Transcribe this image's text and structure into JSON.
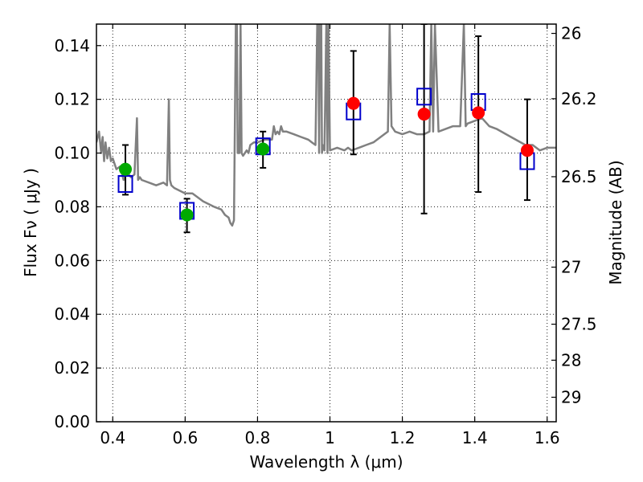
{
  "chart_data": {
    "type": "scatter",
    "xlabel": "Wavelength  λ (μm)",
    "ylabel": "Flux  Fν  ( μJy )",
    "ylabel_right": "Magnitude (AB)",
    "xlim": [
      0.355,
      1.625
    ],
    "ylim": [
      0,
      0.148
    ],
    "grid": true,
    "x_ticks": [
      0.4,
      0.6,
      0.8,
      1.0,
      1.2,
      1.4,
      1.6
    ],
    "x_tick_labels": [
      "0.4",
      "0.6",
      "0.8",
      "1",
      "1.2",
      "1.4",
      "1.6"
    ],
    "y_ticks": [
      0.0,
      0.02,
      0.04,
      0.06,
      0.08,
      0.1,
      0.12,
      0.14
    ],
    "y_tick_labels": [
      "0.00",
      "0.02",
      "0.04",
      "0.06",
      "0.08",
      "0.10",
      "0.12",
      "0.14"
    ],
    "right_ticks": [
      {
        "label": "26",
        "mag": 26.0
      },
      {
        "label": "26.2",
        "mag": 26.2
      },
      {
        "label": "26.5",
        "mag": 26.5
      },
      {
        "label": "27",
        "mag": 27.0
      },
      {
        "label": "27.5",
        "mag": 27.5
      },
      {
        "label": "28",
        "mag": 28.0
      },
      {
        "label": "29",
        "mag": 29.0
      }
    ],
    "series": [
      {
        "kind": "line",
        "color": "#808080",
        "x": [
          0.355,
          0.362,
          0.368,
          0.372,
          0.376,
          0.38,
          0.385,
          0.39,
          0.395,
          0.4,
          0.41,
          0.42,
          0.43,
          0.44,
          0.45,
          0.46,
          0.467,
          0.47,
          0.475,
          0.48,
          0.5,
          0.52,
          0.54,
          0.55,
          0.555,
          0.558,
          0.562,
          0.57,
          0.6,
          0.62,
          0.65,
          0.68,
          0.7,
          0.71,
          0.72,
          0.725,
          0.73,
          0.735,
          0.74,
          0.743,
          0.745,
          0.75,
          0.753,
          0.756,
          0.76,
          0.765,
          0.77,
          0.775,
          0.78,
          0.79,
          0.8,
          0.82,
          0.84,
          0.845,
          0.85,
          0.855,
          0.86,
          0.865,
          0.87,
          0.88,
          0.9,
          0.92,
          0.94,
          0.95,
          0.96,
          0.965,
          0.968,
          0.97,
          0.973,
          0.976,
          0.978,
          0.98,
          0.985,
          0.99,
          0.993,
          0.996,
          1.0,
          1.02,
          1.04,
          1.05,
          1.06,
          1.08,
          1.1,
          1.12,
          1.14,
          1.16,
          1.165,
          1.17,
          1.18,
          1.2,
          1.22,
          1.24,
          1.26,
          1.275,
          1.28,
          1.285,
          1.29,
          1.3,
          1.32,
          1.34,
          1.36,
          1.37,
          1.375,
          1.38,
          1.4,
          1.42,
          1.44,
          1.46,
          1.5,
          1.54,
          1.56,
          1.58,
          1.6,
          1.625
        ],
        "y": [
          0.104,
          0.108,
          0.1,
          0.106,
          0.097,
          0.104,
          0.098,
          0.102,
          0.097,
          0.098,
          0.094,
          0.095,
          0.09,
          0.093,
          0.091,
          0.092,
          0.113,
          0.09,
          0.091,
          0.09,
          0.089,
          0.088,
          0.089,
          0.088,
          0.12,
          0.09,
          0.088,
          0.087,
          0.085,
          0.085,
          0.082,
          0.08,
          0.079,
          0.077,
          0.076,
          0.074,
          0.073,
          0.075,
          0.148,
          0.148,
          0.1,
          0.1,
          0.148,
          0.1,
          0.099,
          0.1,
          0.101,
          0.1,
          0.103,
          0.104,
          0.104,
          0.105,
          0.105,
          0.11,
          0.107,
          0.108,
          0.107,
          0.11,
          0.108,
          0.108,
          0.107,
          0.106,
          0.105,
          0.104,
          0.103,
          0.148,
          0.148,
          0.1,
          0.148,
          0.148,
          0.1,
          0.103,
          0.101,
          0.148,
          0.1,
          0.148,
          0.101,
          0.102,
          0.101,
          0.102,
          0.101,
          0.102,
          0.103,
          0.104,
          0.106,
          0.108,
          0.148,
          0.11,
          0.108,
          0.107,
          0.108,
          0.107,
          0.107,
          0.108,
          0.148,
          0.108,
          0.148,
          0.108,
          0.109,
          0.11,
          0.11,
          0.148,
          0.11,
          0.111,
          0.112,
          0.113,
          0.11,
          0.109,
          0.106,
          0.103,
          0.103,
          0.101,
          0.102,
          0.102
        ]
      },
      {
        "kind": "open-square-marker",
        "color": "#0000cc",
        "x": [
          0.435,
          0.605,
          0.815,
          1.065,
          1.26,
          1.41,
          1.545
        ],
        "y": [
          0.0885,
          0.0785,
          0.1025,
          0.1155,
          0.121,
          0.119,
          0.097
        ]
      },
      {
        "kind": "filled-circle-marker",
        "color": "#00aa00",
        "x": [
          0.435,
          0.605,
          0.815
        ],
        "y": [
          0.094,
          0.077,
          0.1015
        ]
      },
      {
        "kind": "filled-circle-marker",
        "color": "#ff0000",
        "x": [
          1.065,
          1.26,
          1.41,
          1.545
        ],
        "y": [
          0.1185,
          0.1145,
          0.115,
          0.101
        ]
      },
      {
        "kind": "error-bars",
        "color": "#000000",
        "x": [
          0.435,
          0.605,
          0.815,
          1.065,
          1.26,
          1.41,
          1.545
        ],
        "y_low": [
          0.0845,
          0.0705,
          0.0945,
          0.0995,
          0.0775,
          0.0855,
          0.0825
        ],
        "y_high": [
          0.103,
          0.083,
          0.108,
          0.138,
          0.148,
          0.1435,
          0.12
        ]
      }
    ]
  }
}
